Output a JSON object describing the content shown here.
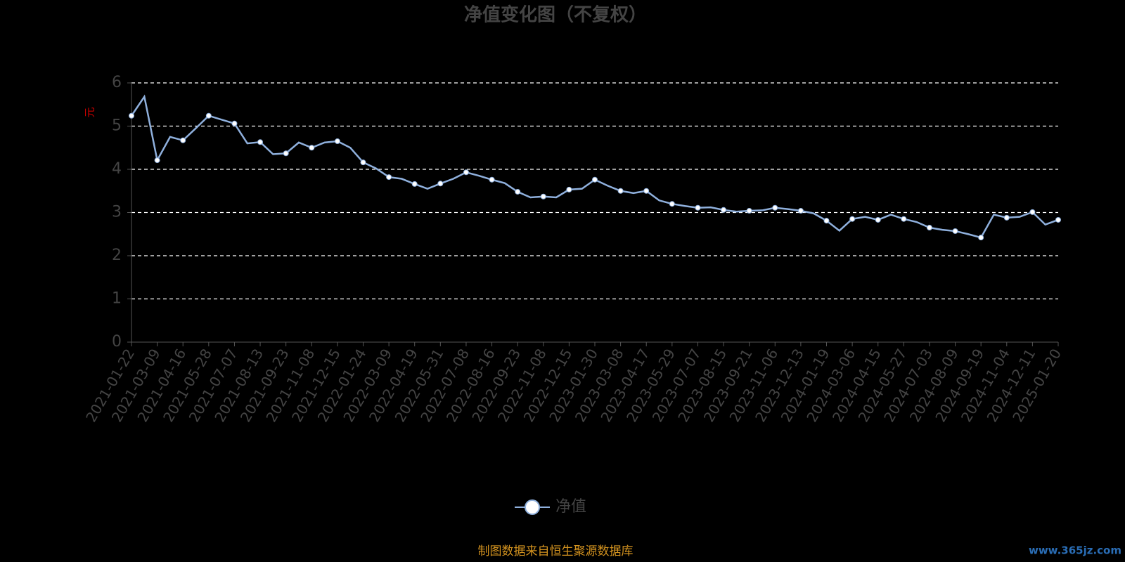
{
  "chart_data": {
    "type": "line",
    "title": "净值变化图（不复权）",
    "y_label": "元",
    "source": "制图数据来自恒生聚源数据库",
    "watermark": "www.365jz.com",
    "categories": [
      "2021-01-22",
      null,
      "2021-03-09",
      null,
      "2021-04-16",
      null,
      "2021-05-28",
      null,
      "2021-07-07",
      null,
      "2021-08-13",
      null,
      "2021-09-23",
      null,
      "2021-11-08",
      null,
      "2021-12-15",
      null,
      "2022-01-24",
      null,
      "2022-03-09",
      null,
      "2022-04-19",
      null,
      "2022-05-31",
      null,
      "2022-07-08",
      null,
      "2022-08-16",
      null,
      "2022-09-23",
      null,
      "2022-11-08",
      null,
      "2022-12-15",
      null,
      "2023-01-30",
      null,
      "2023-03-08",
      null,
      "2023-04-17",
      null,
      "2023-05-29",
      null,
      "2023-07-07",
      null,
      "2023-08-15",
      null,
      "2023-09-21",
      null,
      "2023-11-06",
      null,
      "2023-12-13",
      null,
      "2024-01-19",
      null,
      "2024-03-06",
      null,
      "2024-04-15",
      null,
      "2024-05-27",
      null,
      "2024-07-03",
      null,
      "2024-08-09",
      null,
      "2024-09-19",
      null,
      "2024-11-04",
      null,
      "2024-12-11",
      null,
      "2025-01-20"
    ],
    "series": [
      {
        "name": "净值",
        "color": "#8fb0dd",
        "values": [
          5.24,
          5.68,
          4.21,
          4.75,
          4.67,
          4.95,
          5.24,
          5.15,
          5.06,
          4.6,
          4.63,
          4.35,
          4.37,
          4.62,
          4.5,
          4.62,
          4.65,
          4.5,
          4.16,
          4.02,
          3.82,
          3.78,
          3.66,
          3.55,
          3.67,
          3.78,
          3.93,
          3.85,
          3.76,
          3.68,
          3.48,
          3.35,
          3.37,
          3.35,
          3.53,
          3.55,
          3.76,
          3.62,
          3.5,
          3.45,
          3.5,
          3.28,
          3.2,
          3.15,
          3.11,
          3.12,
          3.06,
          3.02,
          3.04,
          3.05,
          3.11,
          3.08,
          3.04,
          2.98,
          2.81,
          2.58,
          2.85,
          2.9,
          2.83,
          2.95,
          2.85,
          2.78,
          2.65,
          2.6,
          2.57,
          2.5,
          2.42,
          2.95,
          2.88,
          2.9,
          3.01,
          2.72,
          2.83
        ]
      }
    ],
    "ylim": [
      0,
      6
    ],
    "yticks": [
      0,
      1,
      2,
      3,
      4,
      5,
      6
    ],
    "grid": true
  }
}
